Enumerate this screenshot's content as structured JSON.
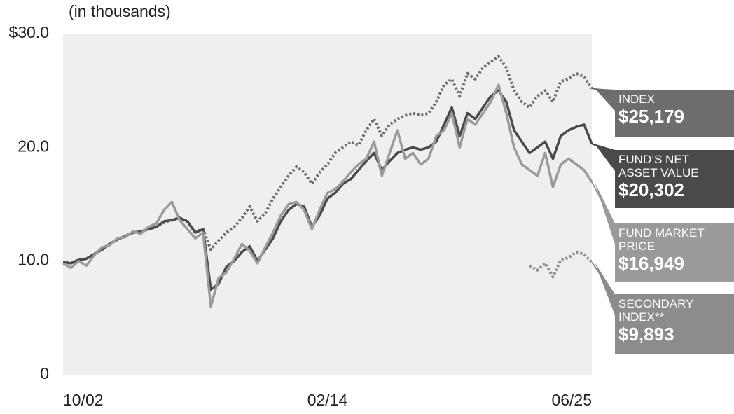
{
  "chart_data": {
    "type": "line",
    "subtitle": "(in thousands)",
    "categories": [
      "10/02",
      null,
      null,
      null,
      null,
      null,
      null,
      null,
      null,
      null,
      null,
      null,
      null,
      null,
      null,
      null,
      null,
      null,
      null,
      null,
      null,
      null,
      null,
      null,
      null,
      null,
      null,
      null,
      null,
      null,
      null,
      null,
      null,
      null,
      "02/14",
      null,
      null,
      null,
      null,
      null,
      null,
      null,
      null,
      null,
      null,
      null,
      null,
      null,
      null,
      null,
      null,
      null,
      null,
      null,
      null,
      null,
      null,
      null,
      null,
      null,
      null,
      null,
      null,
      null,
      null,
      null,
      null,
      null,
      "06/25"
    ],
    "ylim": [
      0,
      30
    ],
    "yticks": [
      0,
      {
        "value": 10,
        "label": "10.0"
      },
      {
        "value": 20,
        "label": "20.0"
      },
      {
        "value": 30,
        "label": "$30.0"
      }
    ],
    "grid": false,
    "series": [
      {
        "name": "INDEX",
        "color": "#6d6d6d",
        "dash": true,
        "values": [
          9.9,
          9.8,
          10.1,
          10.2,
          10.6,
          11.0,
          11.5,
          11.9,
          12.2,
          12.5,
          12.6,
          12.8,
          13.0,
          13.4,
          13.6,
          13.8,
          13.4,
          12.6,
          12.8,
          11.0,
          11.8,
          12.5,
          13.0,
          13.8,
          14.8,
          13.5,
          14.2,
          15.5,
          16.5,
          17.5,
          18.3,
          17.8,
          16.8,
          17.8,
          18.5,
          19.5,
          20.0,
          20.5,
          20.2,
          21.5,
          22.5,
          21.0,
          22.0,
          22.5,
          22.8,
          23.0,
          22.8,
          23.0,
          24.0,
          25.5,
          26.0,
          24.5,
          26.5,
          26.0,
          27.0,
          27.5,
          28.0,
          27.0,
          25.0,
          24.0,
          23.5,
          24.5,
          25.0,
          24.0,
          25.8,
          26.0,
          26.5,
          26.2,
          25.179
        ],
        "value_labels": [
          null,
          null,
          null,
          null,
          null,
          null,
          null,
          null,
          null,
          null,
          null,
          null,
          null,
          null,
          null,
          null,
          null,
          null,
          null,
          null,
          null,
          null,
          null,
          null,
          null,
          null,
          null,
          null,
          null,
          null,
          null,
          null,
          null,
          null,
          null,
          null,
          null,
          null,
          null,
          null,
          null,
          null,
          null,
          null,
          null,
          null,
          null,
          null,
          null,
          null,
          null,
          null,
          null,
          null,
          null,
          null,
          null,
          null,
          null,
          null,
          null,
          null,
          null,
          null,
          null,
          null,
          null,
          null,
          "$25,179"
        ]
      },
      {
        "name": "FUND’S NET ASSET VALUE",
        "color": "#4a4a4a",
        "dash": false,
        "values": [
          9.9,
          9.8,
          10.1,
          10.2,
          10.6,
          11.0,
          11.5,
          11.9,
          12.2,
          12.5,
          12.6,
          12.8,
          13.0,
          13.5,
          13.6,
          13.8,
          13.5,
          12.5,
          12.8,
          7.5,
          8.0,
          9.5,
          10.0,
          10.8,
          11.3,
          10.0,
          11.0,
          12.0,
          13.5,
          14.5,
          15.0,
          14.8,
          13.0,
          14.0,
          15.5,
          16.0,
          16.8,
          17.2,
          18.0,
          18.8,
          19.5,
          18.0,
          18.8,
          19.5,
          19.8,
          20.0,
          19.8,
          20.0,
          20.5,
          22.0,
          23.5,
          21.0,
          23.0,
          22.5,
          23.5,
          24.5,
          25.0,
          24.0,
          21.5,
          20.5,
          19.5,
          20.0,
          20.5,
          19.0,
          21.0,
          21.5,
          21.8,
          22.0,
          20.302
        ],
        "value_labels": [
          null,
          null,
          null,
          null,
          null,
          null,
          null,
          null,
          null,
          null,
          null,
          null,
          null,
          null,
          null,
          null,
          null,
          null,
          null,
          null,
          null,
          null,
          null,
          null,
          null,
          null,
          null,
          null,
          null,
          null,
          null,
          null,
          null,
          null,
          null,
          null,
          null,
          null,
          null,
          null,
          null,
          null,
          null,
          null,
          null,
          null,
          null,
          null,
          null,
          null,
          null,
          null,
          null,
          null,
          null,
          null,
          null,
          null,
          null,
          null,
          null,
          null,
          null,
          null,
          null,
          null,
          null,
          null,
          "$20,302"
        ]
      },
      {
        "name": "FUND MARKET PRICE",
        "color": "#9a9a9a",
        "dash": false,
        "values": [
          9.8,
          9.4,
          10.0,
          9.6,
          10.5,
          11.2,
          11.4,
          12.0,
          12.1,
          12.6,
          12.4,
          13.0,
          13.3,
          14.5,
          15.2,
          13.6,
          12.8,
          12.0,
          12.5,
          6.0,
          8.5,
          9.0,
          10.2,
          11.5,
          10.9,
          9.8,
          11.2,
          12.5,
          14.0,
          15.0,
          15.2,
          14.5,
          12.8,
          14.5,
          16.0,
          16.3,
          17.0,
          17.8,
          18.5,
          19.0,
          20.5,
          17.5,
          19.5,
          21.5,
          19.0,
          19.5,
          18.5,
          19.0,
          21.0,
          21.5,
          23.0,
          20.0,
          22.5,
          22.0,
          23.0,
          24.0,
          25.5,
          23.0,
          20.0,
          18.5,
          18.0,
          17.5,
          19.5,
          16.5,
          18.5,
          19.0,
          18.5,
          18.0,
          16.949
        ],
        "value_labels": [
          null,
          null,
          null,
          null,
          null,
          null,
          null,
          null,
          null,
          null,
          null,
          null,
          null,
          null,
          null,
          null,
          null,
          null,
          null,
          null,
          null,
          null,
          null,
          null,
          null,
          null,
          null,
          null,
          null,
          null,
          null,
          null,
          null,
          null,
          null,
          null,
          null,
          null,
          null,
          null,
          null,
          null,
          null,
          null,
          null,
          null,
          null,
          null,
          null,
          null,
          null,
          null,
          null,
          null,
          null,
          null,
          null,
          null,
          null,
          null,
          null,
          null,
          null,
          null,
          null,
          null,
          null,
          null,
          "$16,949"
        ]
      },
      {
        "name": "SECONDARY INDEX**",
        "color": "#8c8c8c",
        "dash": true,
        "values": [
          null,
          null,
          null,
          null,
          null,
          null,
          null,
          null,
          null,
          null,
          null,
          null,
          null,
          null,
          null,
          null,
          null,
          null,
          null,
          null,
          null,
          null,
          null,
          null,
          null,
          null,
          null,
          null,
          null,
          null,
          null,
          null,
          null,
          null,
          null,
          null,
          null,
          null,
          null,
          null,
          null,
          null,
          null,
          null,
          null,
          null,
          null,
          null,
          null,
          null,
          null,
          null,
          null,
          null,
          null,
          null,
          null,
          null,
          null,
          null,
          9.6,
          9.2,
          9.8,
          8.6,
          10.1,
          10.3,
          10.8,
          10.6,
          9.893
        ],
        "value_labels": [
          null,
          null,
          null,
          null,
          null,
          null,
          null,
          null,
          null,
          null,
          null,
          null,
          null,
          null,
          null,
          null,
          null,
          null,
          null,
          null,
          null,
          null,
          null,
          null,
          null,
          null,
          null,
          null,
          null,
          null,
          null,
          null,
          null,
          null,
          null,
          null,
          null,
          null,
          null,
          null,
          null,
          null,
          null,
          null,
          null,
          null,
          null,
          null,
          null,
          null,
          null,
          null,
          null,
          null,
          null,
          null,
          null,
          null,
          null,
          null,
          null,
          null,
          null,
          null,
          null,
          null,
          null,
          null,
          "$9,893"
        ]
      }
    ]
  }
}
